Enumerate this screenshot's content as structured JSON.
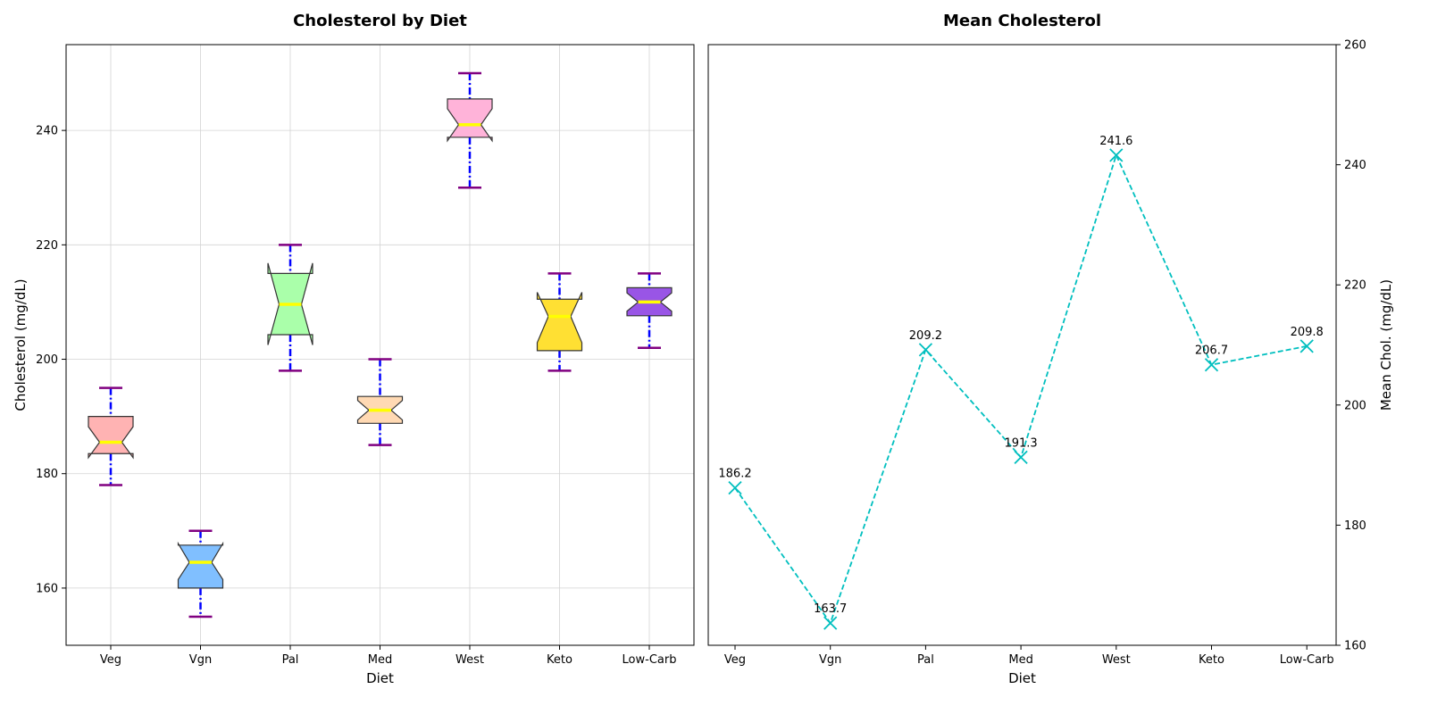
{
  "colors": {
    "whisker": "#0000ff",
    "cap": "#800080",
    "median": "#ffff00",
    "grid": "#d3d3d3",
    "line": "#00bfbf"
  },
  "chart_data": [
    {
      "type": "box",
      "title": "Cholesterol by Diet",
      "xlabel": "Diet",
      "ylabel": "Cholesterol (mg/dL)",
      "ylim": [
        150,
        255
      ],
      "yticks": [
        160,
        180,
        200,
        220,
        240
      ],
      "grid": true,
      "notched": true,
      "categories": [
        "Veg",
        "Vgn",
        "Pal",
        "Med",
        "West",
        "Keto",
        "Low-Carb"
      ],
      "box_colors": [
        "#ffb3b3",
        "#80bfff",
        "#aaffaa",
        "#ffd9b3",
        "#ffb3d9",
        "#ffe033",
        "#9955e6"
      ],
      "boxes": [
        {
          "min": 178,
          "q1": 183.5,
          "median": 185.5,
          "q3": 190,
          "max": 195,
          "notch_low": 182.8,
          "notch_high": 188.2
        },
        {
          "min": 155,
          "q1": 160,
          "median": 164.5,
          "q3": 167.5,
          "max": 170,
          "notch_low": 161.5,
          "notch_high": 167.8
        },
        {
          "min": 198,
          "q1": 204.3,
          "median": 209.6,
          "q3": 215,
          "max": 220,
          "notch_low": 202.5,
          "notch_high": 216.8
        },
        {
          "min": 185,
          "q1": 188.8,
          "median": 191.1,
          "q3": 193.5,
          "max": 200,
          "notch_low": 189.4,
          "notch_high": 192.8
        },
        {
          "min": 230,
          "q1": 238.8,
          "median": 241,
          "q3": 245.5,
          "max": 250,
          "notch_low": 238.2,
          "notch_high": 243.8
        },
        {
          "min": 198,
          "q1": 201.5,
          "median": 207.5,
          "q3": 210.5,
          "max": 215,
          "notch_low": 202.9,
          "notch_high": 211.7
        },
        {
          "min": 202,
          "q1": 207.6,
          "median": 210,
          "q3": 212.5,
          "max": 215,
          "notch_low": 208.4,
          "notch_high": 211.6
        }
      ]
    },
    {
      "type": "line",
      "title": "Mean Cholesterol",
      "xlabel": "Diet",
      "ylabel": "Mean Chol. (mg/dL)",
      "ylim": [
        160,
        260
      ],
      "yticks": [
        160,
        180,
        200,
        220,
        240,
        260
      ],
      "y_axis_side": "right",
      "grid": false,
      "marker": "x",
      "line_style": "dashed",
      "categories": [
        "Veg",
        "Vgn",
        "Pal",
        "Med",
        "West",
        "Keto",
        "Low-Carb"
      ],
      "values": [
        186.2,
        163.7,
        209.2,
        191.3,
        241.6,
        206.7,
        209.8
      ],
      "data_labels": [
        "186.2",
        "163.7",
        "209.2",
        "191.3",
        "241.6",
        "206.7",
        "209.8"
      ]
    }
  ]
}
